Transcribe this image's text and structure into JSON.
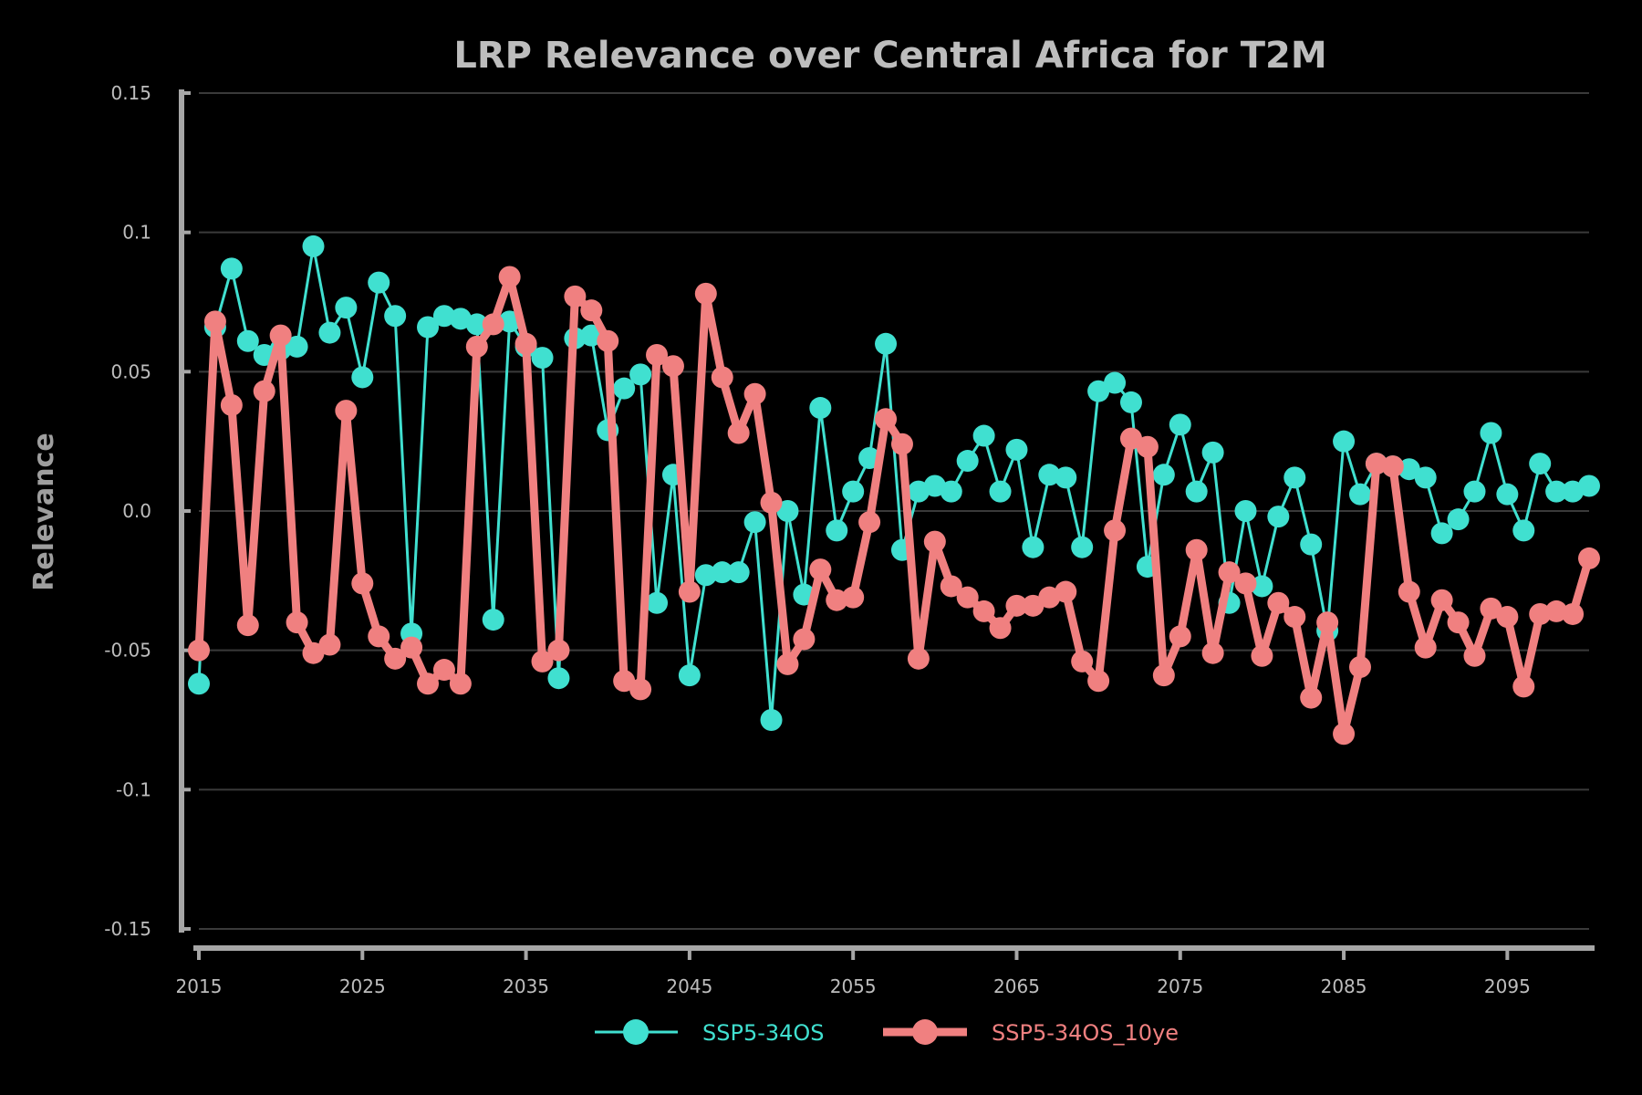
{
  "chart_data": {
    "type": "line",
    "title": "LRP Relevance over Central Africa for T2M",
    "xlabel": "",
    "ylabel": "Relevance",
    "xlim": [
      2015,
      2100
    ],
    "ylim": [
      -0.15,
      0.15
    ],
    "x_ticks": [
      2015,
      2025,
      2035,
      2045,
      2055,
      2065,
      2075,
      2085,
      2095
    ],
    "x_tick_labels": [
      "2015",
      "2025",
      "2035",
      "2045",
      "2055",
      "2065",
      "2075",
      "2085",
      "2095"
    ],
    "y_ticks": [
      -0.15,
      -0.1,
      -0.05,
      0,
      0.05,
      0.1,
      0.15
    ],
    "y_tick_labels": [
      "-0.15",
      "-0.1",
      "-0.05",
      "0.0",
      "0.05",
      "0.1",
      "0.15"
    ],
    "grid": "horizontal",
    "legend_position": "bottom-center",
    "x": [
      2015,
      2016,
      2017,
      2018,
      2019,
      2020,
      2021,
      2022,
      2023,
      2024,
      2025,
      2026,
      2027,
      2028,
      2029,
      2030,
      2031,
      2032,
      2033,
      2034,
      2035,
      2036,
      2037,
      2038,
      2039,
      2040,
      2041,
      2042,
      2043,
      2044,
      2045,
      2046,
      2047,
      2048,
      2049,
      2050,
      2051,
      2052,
      2053,
      2054,
      2055,
      2056,
      2057,
      2058,
      2059,
      2060,
      2061,
      2062,
      2063,
      2064,
      2065,
      2066,
      2067,
      2068,
      2069,
      2070,
      2071,
      2072,
      2073,
      2074,
      2075,
      2076,
      2077,
      2078,
      2079,
      2080,
      2081,
      2082,
      2083,
      2084,
      2085,
      2086,
      2087,
      2088,
      2089,
      2090,
      2091,
      2092,
      2093,
      2094,
      2095,
      2096,
      2097,
      2098,
      2099,
      2100
    ],
    "series": [
      {
        "name": "SSP5-34OS",
        "color": "#40e0d0",
        "values": [
          -0.062,
          0.066,
          0.087,
          0.061,
          0.056,
          0.058,
          0.059,
          0.095,
          0.064,
          0.073,
          0.048,
          0.082,
          0.07,
          -0.044,
          0.066,
          0.07,
          0.069,
          0.067,
          -0.039,
          0.068,
          0.059,
          0.055,
          -0.06,
          0.062,
          0.063,
          0.029,
          0.044,
          0.049,
          -0.033,
          0.013,
          -0.059,
          -0.023,
          -0.022,
          -0.022,
          -0.004,
          -0.075,
          0.0,
          -0.03,
          0.037,
          -0.007,
          0.007,
          0.019,
          0.06,
          -0.014,
          0.007,
          0.009,
          0.007,
          0.018,
          0.027,
          0.007,
          0.022,
          -0.013,
          0.013,
          0.012,
          -0.013,
          0.043,
          0.046,
          0.039,
          -0.02,
          0.013,
          0.031,
          0.007,
          0.021,
          -0.033,
          0.0,
          -0.027,
          -0.002,
          0.012,
          -0.012,
          -0.043,
          0.025,
          0.006,
          0.017,
          0.016,
          0.015,
          0.012,
          -0.008,
          -0.003,
          0.007,
          0.028,
          0.006,
          -0.007,
          0.017,
          0.007,
          0.007,
          0.009
        ]
      },
      {
        "name": "SSP5-34OS_10ye",
        "color": "#f08080",
        "values": [
          -0.05,
          0.068,
          0.038,
          -0.041,
          0.043,
          0.063,
          -0.04,
          -0.051,
          -0.048,
          0.036,
          -0.026,
          -0.045,
          -0.053,
          -0.049,
          -0.062,
          -0.057,
          -0.062,
          0.059,
          0.067,
          0.084,
          0.06,
          -0.054,
          -0.05,
          0.077,
          0.072,
          0.061,
          -0.061,
          -0.064,
          0.056,
          0.052,
          -0.029,
          0.078,
          0.048,
          0.028,
          0.042,
          0.003,
          -0.055,
          -0.046,
          -0.021,
          -0.032,
          -0.031,
          -0.004,
          0.033,
          0.024,
          -0.053,
          -0.011,
          -0.027,
          -0.031,
          -0.036,
          -0.042,
          -0.034,
          -0.034,
          -0.031,
          -0.029,
          -0.054,
          -0.061,
          -0.007,
          0.026,
          0.023,
          -0.059,
          -0.045,
          -0.014,
          -0.051,
          -0.022,
          -0.026,
          -0.052,
          -0.033,
          -0.038,
          -0.067,
          -0.04,
          -0.08,
          -0.056,
          0.017,
          0.016,
          -0.029,
          -0.049,
          -0.032,
          -0.04,
          -0.052,
          -0.035,
          -0.038,
          -0.063,
          -0.037,
          -0.036,
          -0.037,
          -0.017
        ]
      }
    ]
  }
}
